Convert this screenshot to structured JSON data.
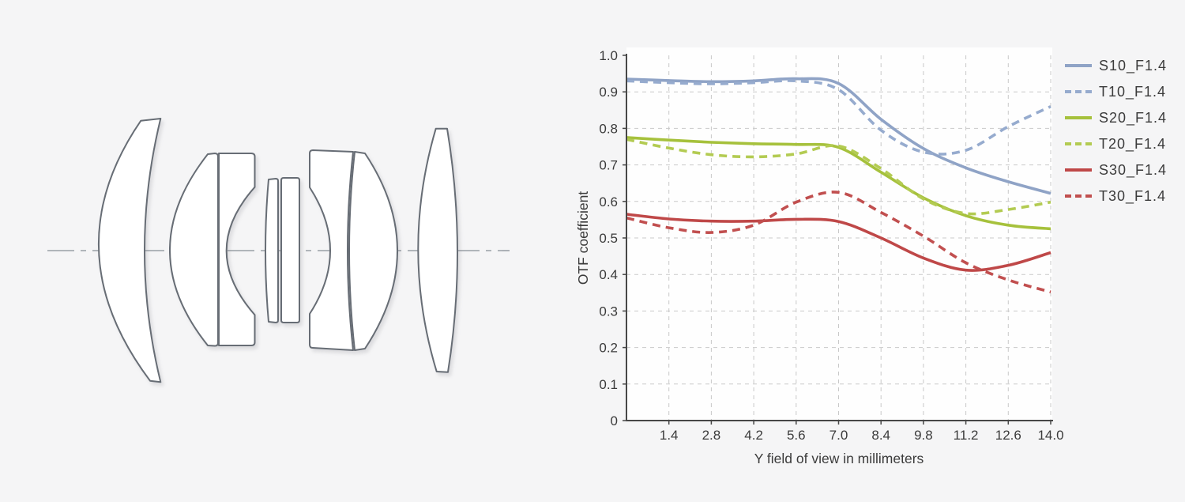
{
  "page": {
    "background": "#f5f5f6"
  },
  "lens_diagram": {
    "element_count": 8,
    "groups": [
      "front-meniscus",
      "cemented-doublet-front",
      "thin-pair-center",
      "cemented-doublet-rear",
      "rear-biconvex"
    ],
    "outline_color": "#676d75",
    "axis_color": "#9aa0a6"
  },
  "chart_data": {
    "type": "line",
    "title": "",
    "xlabel": "Y field of view in millimeters",
    "ylabel": "OTF coefficient",
    "xlim": [
      0,
      14
    ],
    "ylim": [
      0,
      1.0
    ],
    "grid": true,
    "legend_position": "right",
    "x_tick_labels": [
      "1.4",
      "2.8",
      "4.2",
      "5.6",
      "7.0",
      "8.4",
      "9.8",
      "11.2",
      "12.6",
      "14.0"
    ],
    "x_tick_values": [
      1.4,
      2.8,
      4.2,
      5.6,
      7.0,
      8.4,
      9.8,
      11.2,
      12.6,
      14.0
    ],
    "y_tick_labels": [
      "0",
      "0.1",
      "0.2",
      "0.3",
      "0.4",
      "0.5",
      "0.6",
      "0.7",
      "0.8",
      "0.9",
      "1.0"
    ],
    "y_tick_values": [
      0,
      0.1,
      0.2,
      0.3,
      0.4,
      0.5,
      0.6,
      0.7,
      0.8,
      0.9,
      1.0
    ],
    "x": [
      0,
      1.4,
      2.8,
      4.2,
      5.6,
      7.0,
      8.4,
      9.8,
      11.2,
      12.6,
      14.0
    ],
    "series": [
      {
        "name": "S10_F1.4",
        "style": "solid",
        "color": "#8fa3c6",
        "values": [
          0.935,
          0.931,
          0.928,
          0.93,
          0.936,
          0.923,
          0.825,
          0.745,
          0.692,
          0.654,
          0.622
        ]
      },
      {
        "name": "T10_F1.4",
        "style": "dashed",
        "color": "#96abce",
        "values": [
          0.93,
          0.925,
          0.922,
          0.925,
          0.93,
          0.906,
          0.795,
          0.735,
          0.74,
          0.805,
          0.86
        ]
      },
      {
        "name": "S20_F1.4",
        "style": "solid",
        "color": "#a6c13c",
        "values": [
          0.775,
          0.768,
          0.762,
          0.758,
          0.756,
          0.748,
          0.68,
          0.61,
          0.561,
          0.535,
          0.525
        ]
      },
      {
        "name": "T20_F1.4",
        "style": "dashed",
        "color": "#b3cb52",
        "values": [
          0.77,
          0.746,
          0.728,
          0.722,
          0.73,
          0.752,
          0.69,
          0.607,
          0.567,
          0.578,
          0.598
        ]
      },
      {
        "name": "S30_F1.4",
        "style": "solid",
        "color": "#bf4848",
        "values": [
          0.565,
          0.552,
          0.546,
          0.546,
          0.551,
          0.545,
          0.5,
          0.445,
          0.412,
          0.425,
          0.46
        ]
      },
      {
        "name": "T30_F1.4",
        "style": "dashed",
        "color": "#c14f4f",
        "values": [
          0.555,
          0.528,
          0.515,
          0.535,
          0.598,
          0.625,
          0.57,
          0.505,
          0.432,
          0.385,
          0.352
        ]
      }
    ]
  }
}
